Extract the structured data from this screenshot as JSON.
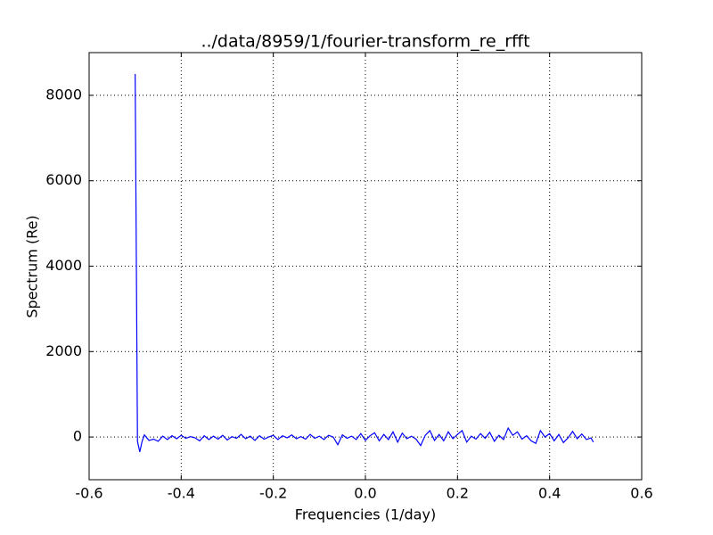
{
  "chart_data": {
    "type": "line",
    "title": "../data/8959/1/fourier-transform_re_rfft",
    "xlabel": "Frequencies (1/day)",
    "ylabel": "Spectrum (Re)",
    "x": [
      -0.5,
      -0.495,
      -0.49,
      -0.485,
      -0.48,
      -0.47,
      -0.46,
      -0.45,
      -0.44,
      -0.43,
      -0.42,
      -0.41,
      -0.4,
      -0.39,
      -0.38,
      -0.37,
      -0.36,
      -0.35,
      -0.34,
      -0.33,
      -0.32,
      -0.31,
      -0.3,
      -0.29,
      -0.28,
      -0.27,
      -0.26,
      -0.25,
      -0.24,
      -0.23,
      -0.22,
      -0.21,
      -0.2,
      -0.19,
      -0.18,
      -0.17,
      -0.16,
      -0.15,
      -0.14,
      -0.13,
      -0.12,
      -0.11,
      -0.1,
      -0.09,
      -0.08,
      -0.07,
      -0.06,
      -0.05,
      -0.04,
      -0.03,
      -0.02,
      -0.01,
      0.0,
      0.01,
      0.02,
      0.03,
      0.04,
      0.05,
      0.06,
      0.07,
      0.08,
      0.09,
      0.1,
      0.11,
      0.12,
      0.13,
      0.14,
      0.15,
      0.16,
      0.17,
      0.18,
      0.19,
      0.2,
      0.21,
      0.22,
      0.23,
      0.24,
      0.25,
      0.26,
      0.27,
      0.28,
      0.29,
      0.3,
      0.31,
      0.32,
      0.33,
      0.34,
      0.35,
      0.36,
      0.37,
      0.38,
      0.39,
      0.4,
      0.41,
      0.42,
      0.43,
      0.44,
      0.45,
      0.46,
      0.47,
      0.48,
      0.49,
      0.495
    ],
    "series": [
      {
        "color": "#0000ff",
        "values": [
          8500,
          -100,
          -350,
          -100,
          50,
          -80,
          -50,
          -100,
          20,
          -60,
          30,
          -40,
          40,
          -30,
          10,
          -20,
          -90,
          30,
          -60,
          20,
          -50,
          40,
          -70,
          10,
          -30,
          60,
          -40,
          20,
          -80,
          30,
          -50,
          0,
          40,
          -60,
          30,
          -20,
          50,
          -40,
          10,
          -50,
          60,
          -30,
          20,
          -60,
          40,
          0,
          -180,
          50,
          -30,
          20,
          -60,
          80,
          -80,
          30,
          100,
          -90,
          60,
          -60,
          120,
          -120,
          90,
          -40,
          20,
          -50,
          -200,
          40,
          150,
          -80,
          60,
          -90,
          120,
          -40,
          60,
          150,
          -120,
          20,
          -50,
          80,
          -30,
          110,
          -100,
          40,
          -60,
          210,
          40,
          120,
          -50,
          30,
          -90,
          -150,
          150,
          0,
          80,
          -90,
          60,
          -130,
          -20,
          130,
          -40,
          70,
          -60,
          -20,
          -120
        ]
      }
    ],
    "xlim": [
      -0.6,
      0.6
    ],
    "xticks": [
      -0.6,
      -0.4,
      -0.2,
      {
        "value": 0,
        "label": "0.0"
      },
      0.2,
      0.4,
      0.6
    ],
    "ylim": [
      -1000,
      9000
    ],
    "yticks": [
      0,
      2000,
      4000,
      6000,
      8000
    ],
    "grid": true
  }
}
